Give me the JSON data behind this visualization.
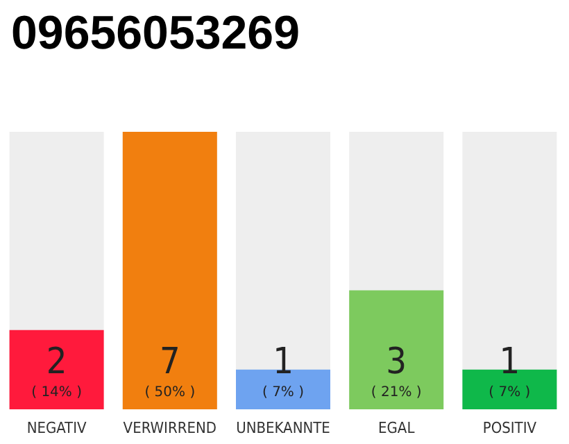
{
  "chart_data": {
    "type": "bar",
    "title": "09656053269",
    "categories": [
      "NEGATIV",
      "VERWIRREND",
      "UNBEKANNTE",
      "EGAL",
      "POSITIV"
    ],
    "values": [
      2,
      7,
      1,
      3,
      1
    ],
    "colors": [
      "#ff1a3c",
      "#f17f0f",
      "#6ea3f0",
      "#7dca5e",
      "#0fb84a"
    ],
    "value_labels": [
      "2\n( 14% )",
      "7\n( 50% )",
      "1\n( 7% )",
      "3\n( 21% )",
      "1\n( 7% )"
    ]
  }
}
